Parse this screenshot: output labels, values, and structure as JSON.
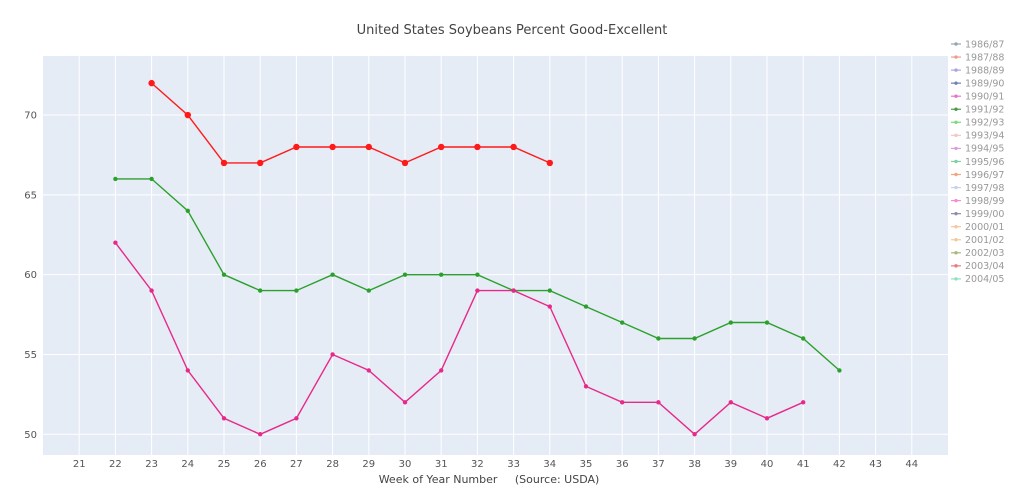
{
  "chart_data": {
    "type": "line",
    "title": "United States Soybeans Percent Good-Excellent",
    "xlabel": "Week of Year Number     (Source: USDA)",
    "ylabel": "",
    "xlim": [
      20,
      45
    ],
    "ylim": [
      48.7,
      73.7
    ],
    "x_ticks": [
      21,
      22,
      23,
      24,
      25,
      26,
      27,
      28,
      29,
      30,
      31,
      32,
      33,
      34,
      35,
      36,
      37,
      38,
      39,
      40,
      41,
      42,
      43,
      44
    ],
    "y_ticks": [
      50,
      55,
      60,
      65,
      70
    ],
    "grid": true,
    "legend_position": "right",
    "legend": [
      {
        "name": "1986/87",
        "color": "#9aa3b5"
      },
      {
        "name": "1987/88",
        "color": "#ef9a8a"
      },
      {
        "name": "1988/89",
        "color": "#a9a5e0"
      },
      {
        "name": "1989/90",
        "color": "#6f7fb8"
      },
      {
        "name": "1990/91",
        "color": "#e377c2"
      },
      {
        "name": "1991/92",
        "color": "#4d9a4d"
      },
      {
        "name": "1992/93",
        "color": "#77dd77"
      },
      {
        "name": "1993/94",
        "color": "#f5c6c6"
      },
      {
        "name": "1994/95",
        "color": "#d9a0e0"
      },
      {
        "name": "1995/96",
        "color": "#7fd1a3"
      },
      {
        "name": "1996/97",
        "color": "#f4a582"
      },
      {
        "name": "1997/98",
        "color": "#c6d3ef"
      },
      {
        "name": "1998/99",
        "color": "#f08fd6"
      },
      {
        "name": "1999/00",
        "color": "#8c8ca8"
      },
      {
        "name": "2000/01",
        "color": "#f8c5a0"
      },
      {
        "name": "2001/02",
        "color": "#f1c9a0"
      },
      {
        "name": "2002/03",
        "color": "#a8b878"
      },
      {
        "name": "2003/04",
        "color": "#e87a7a"
      },
      {
        "name": "2004/05",
        "color": "#8fe0c0"
      }
    ],
    "series": [
      {
        "color": "#2ca02c",
        "x": [
          22,
          23,
          24,
          25,
          26,
          27,
          28,
          29,
          30,
          31,
          32,
          33,
          34,
          35,
          36,
          37,
          38,
          39,
          40,
          41,
          42
        ],
        "y": [
          66,
          66,
          64,
          60,
          59,
          59,
          60,
          59,
          60,
          60,
          60,
          59,
          59,
          58,
          57,
          56,
          56,
          57,
          57,
          56,
          54
        ],
        "marker_size": 2.2
      },
      {
        "color": "#e7298a",
        "x": [
          22,
          23,
          24,
          25,
          26,
          27,
          28,
          29,
          30,
          31,
          32,
          33,
          34,
          35,
          36,
          37,
          38,
          39,
          40,
          41
        ],
        "y": [
          62,
          59,
          54,
          51,
          50,
          51,
          55,
          54,
          52,
          54,
          59,
          59,
          58,
          53,
          52,
          52,
          50,
          52,
          51,
          52
        ],
        "marker_size": 2.2
      },
      {
        "color": "#ff1a1a",
        "x": [
          23,
          24,
          25,
          26,
          27,
          28,
          29,
          30,
          31,
          32,
          33,
          34
        ],
        "y": [
          72,
          70,
          67,
          67,
          68,
          68,
          68,
          67,
          68,
          68,
          68,
          67
        ],
        "marker_size": 3.2
      }
    ]
  }
}
